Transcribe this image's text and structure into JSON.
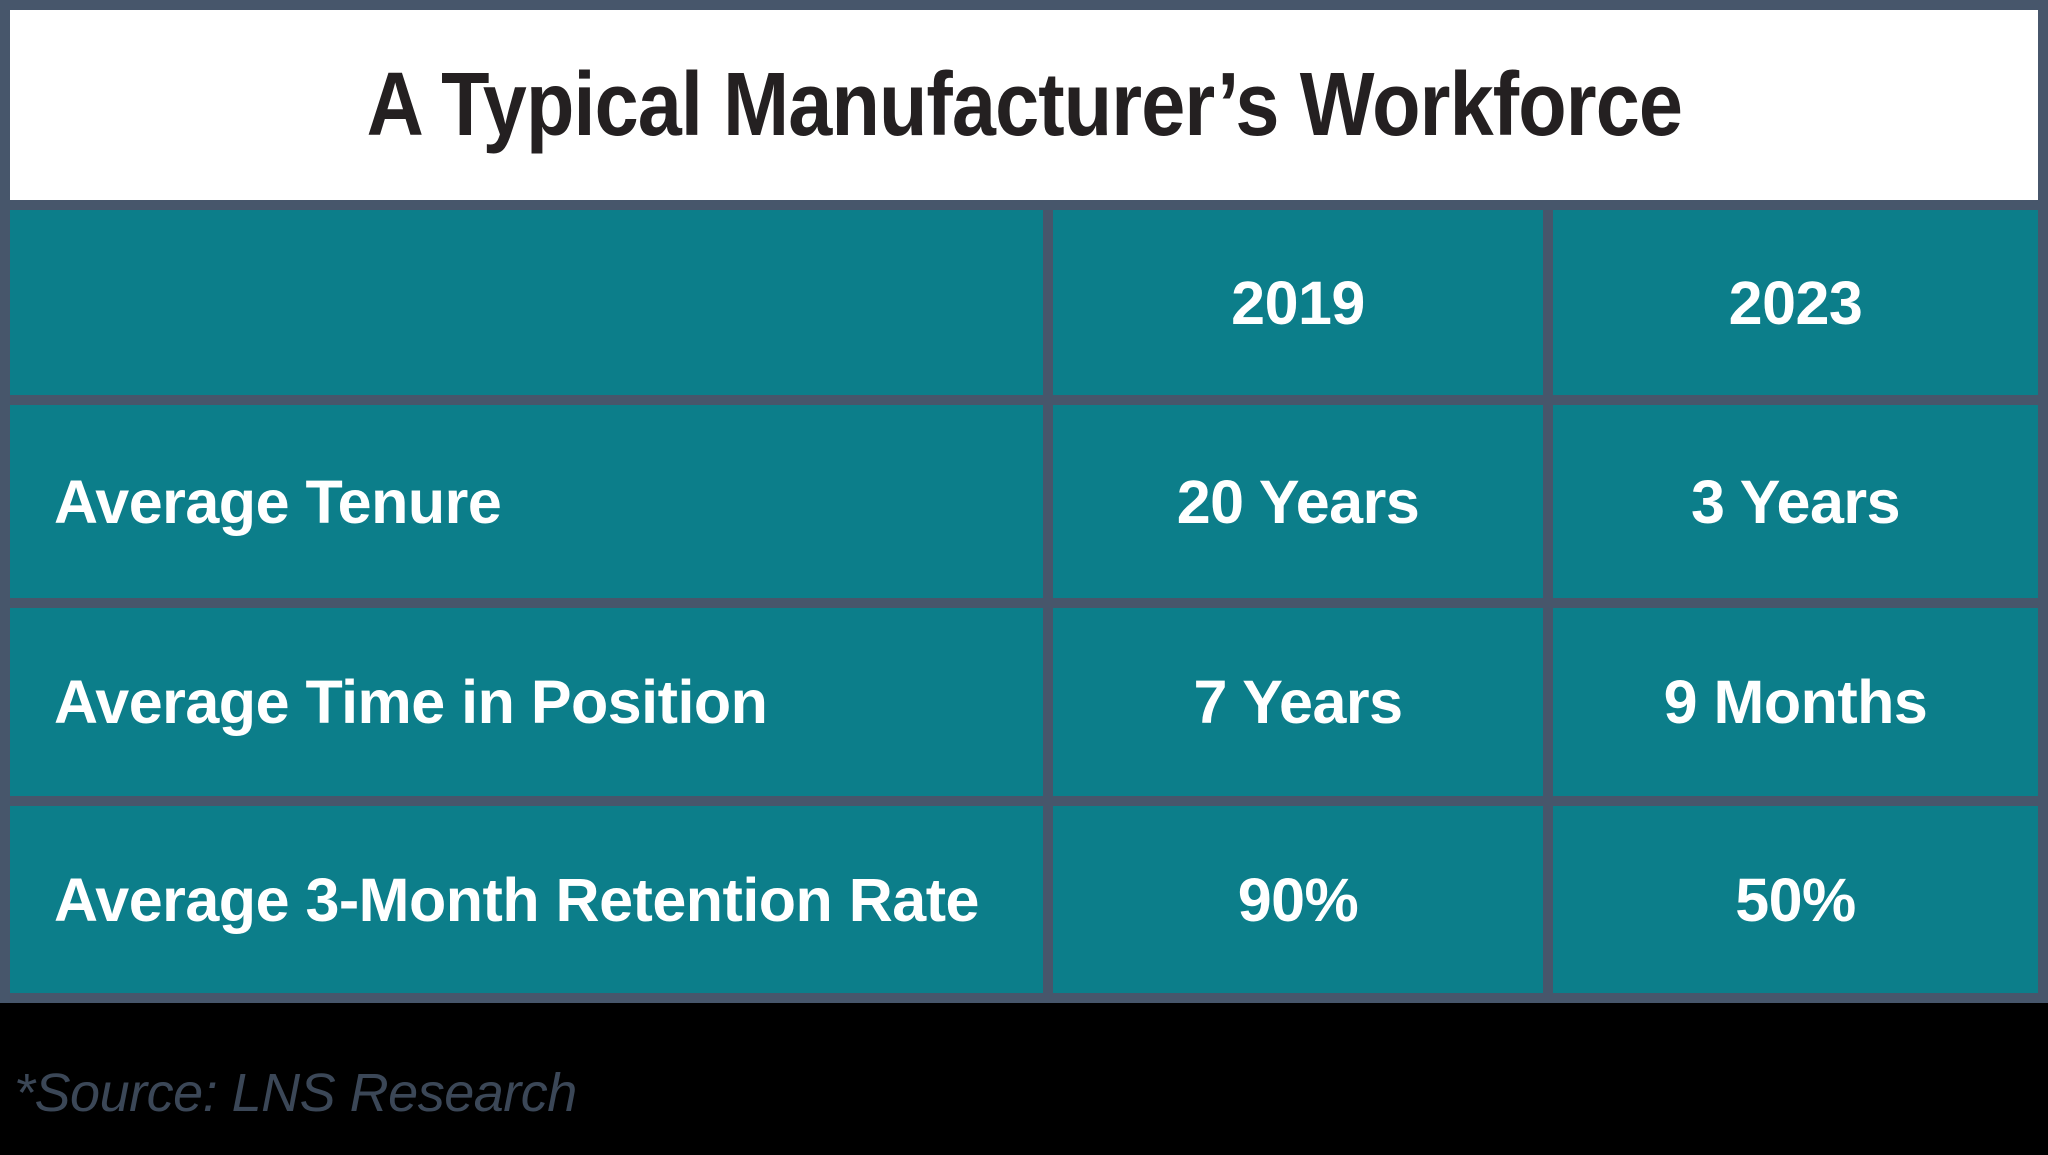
{
  "title": "A Typical Manufacturer’s Workforce",
  "table": {
    "columns": [
      "",
      "2019",
      "2023"
    ],
    "rows": [
      [
        "Average Tenure",
        "20 Years",
        "3 Years"
      ],
      [
        "Average Time in Position",
        "7 Years",
        "9 Months"
      ],
      [
        "Average 3-Month Retention Rate",
        "90%",
        "50%"
      ]
    ]
  },
  "source_note": "*Source: LNS Research",
  "colors": {
    "canvas_bg": "#000000",
    "title_bg": "#FFFFFF",
    "title_text": "#242021",
    "cell_bg": "#0C7E8A",
    "grid_line": "#47566B",
    "cell_text": "#FFFFFF",
    "source_text": "#3B4757"
  },
  "chart_data": {
    "type": "table",
    "title": "A Typical Manufacturer’s Workforce",
    "columns": [
      "",
      "2019",
      "2023"
    ],
    "rows": [
      [
        "Average Tenure",
        "20 Years",
        "3 Years"
      ],
      [
        "Average Time in Position",
        "7 Years",
        "9 Months"
      ],
      [
        "Average 3-Month Retention Rate",
        "90%",
        "50%"
      ]
    ],
    "source": "*Source: LNS Research"
  }
}
